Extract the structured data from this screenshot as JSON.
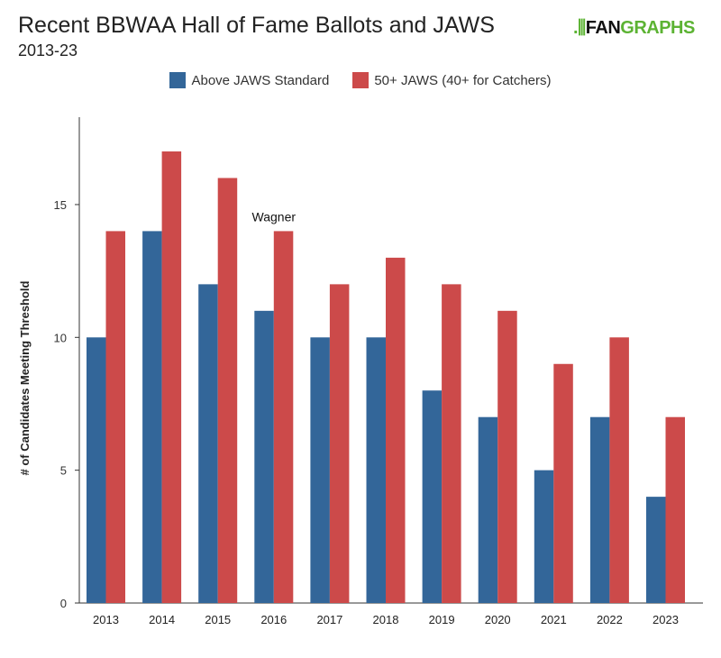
{
  "header": {
    "title": "Recent BBWAA Hall of Fame Ballots and JAWS",
    "subtitle": "2013-23",
    "logo": "FANGRAPHS"
  },
  "chart_data": {
    "type": "bar",
    "title": "Recent BBWAA Hall of Fame Ballots and JAWS",
    "subtitle": "2013-23",
    "xlabel": "",
    "ylabel": "# of Candidates Meeting Threshold",
    "ylim": [
      0,
      18
    ],
    "yticks": [
      0,
      5,
      10,
      15
    ],
    "categories": [
      "2013",
      "2014",
      "2015",
      "2016",
      "2017",
      "2018",
      "2019",
      "2020",
      "2021",
      "2022",
      "2023"
    ],
    "series": [
      {
        "name": "Above JAWS Standard",
        "color": "#336699",
        "values": [
          10,
          14,
          12,
          11,
          10,
          10,
          8,
          7,
          5,
          7,
          4
        ]
      },
      {
        "name": "50+ JAWS (40+ for Catchers)",
        "color": "#cc4a4a",
        "values": [
          14,
          17,
          16,
          14,
          12,
          13,
          12,
          11,
          9,
          10,
          7
        ]
      }
    ],
    "annotations": [
      {
        "text": "Wagner",
        "category": "2016",
        "value": 14
      }
    ],
    "grid": false,
    "legend": "top"
  }
}
